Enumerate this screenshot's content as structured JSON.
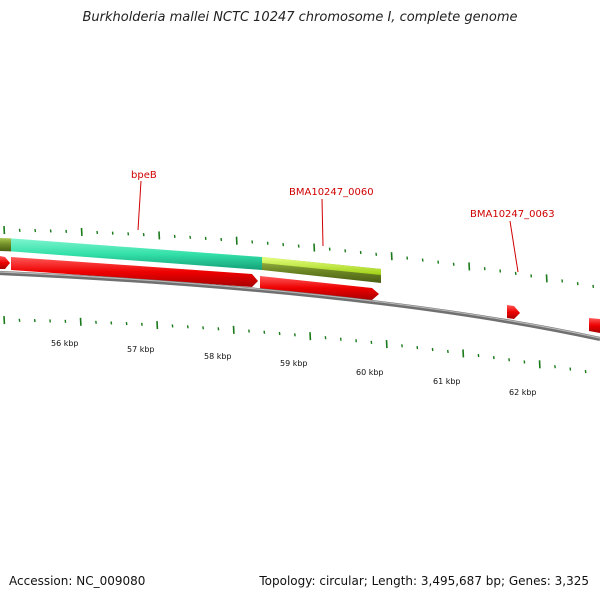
{
  "title": "Burkholderia mallei NCTC 10247 chromosome I, complete genome",
  "footer": {
    "accession": "Accession: NC_009080",
    "summary": "Topology: circular; Length: 3,495,687 bp; Genes: 3,325"
  },
  "scale_labels": [
    "56 kbp",
    "57 kbp",
    "58 kbp",
    "59 kbp",
    "60 kbp",
    "61 kbp",
    "62 kbp"
  ],
  "gene_labels": [
    "bpeB",
    "BMA10247_0060",
    "BMA10247_0063"
  ],
  "colors": {
    "cds": "#ee0000",
    "feature_teal": "#33e0a8",
    "feature_lime": "#b8e830",
    "feature_olive": "#6f8a26",
    "backbone": "#8a8a8a",
    "tick": "#1a7a1a",
    "label": "#d00000"
  }
}
